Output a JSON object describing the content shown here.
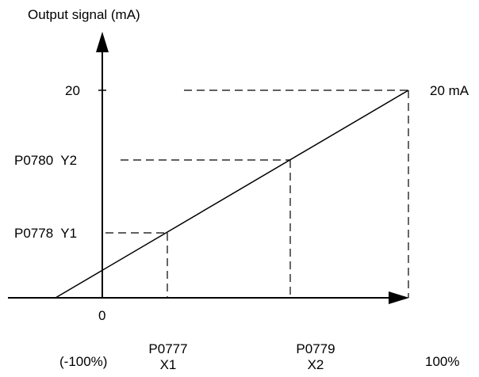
{
  "y_axis_title": "Output signal (mA)",
  "y_labels": {
    "max": "20",
    "y2": "P0780  Y2",
    "y1": "P0778  Y1"
  },
  "right_label": "20 mA",
  "origin_label": "0",
  "x_labels": {
    "neg": "(-100%)",
    "x1_param": "P0777",
    "x1_name": "X1",
    "x2_param": "P0779",
    "x2_name": "X2",
    "max": "100%"
  }
}
